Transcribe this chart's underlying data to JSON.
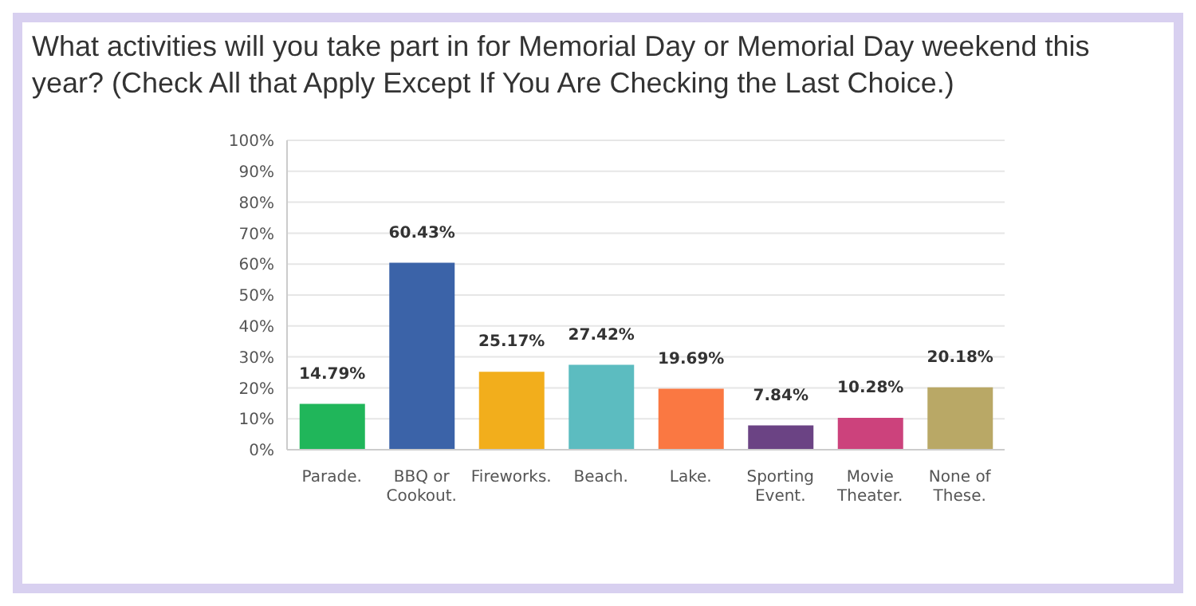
{
  "chart_data": {
    "type": "bar",
    "title": "What activities will you take part in for Memorial Day or Memorial Day weekend this year? (Check All that Apply Except If You Are Checking the Last Choice.)",
    "categories": [
      "Parade.",
      "BBQ or Cookout.",
      "Fireworks.",
      "Beach.",
      "Lake.",
      "Sporting Event.",
      "Movie Theater.",
      "None of These."
    ],
    "values": [
      14.79,
      60.43,
      25.17,
      27.42,
      19.69,
      7.84,
      10.28,
      20.18
    ],
    "colors": [
      "#20b65a",
      "#3b63a8",
      "#f2ae1c",
      "#5cbcc0",
      "#fa7842",
      "#6b4384",
      "#cc427c",
      "#b9a866"
    ],
    "value_labels": [
      "14.79%",
      "60.43%",
      "25.17%",
      "27.42%",
      "19.69%",
      "7.84%",
      "10.28%",
      "20.18%"
    ],
    "ylim": [
      0,
      100
    ],
    "yticks": [
      {
        "value": 0,
        "label": "0%"
      },
      {
        "value": 10,
        "label": "10%"
      },
      {
        "value": 20,
        "label": "20%"
      },
      {
        "value": 30,
        "label": "30%"
      },
      {
        "value": 40,
        "label": "40%"
      },
      {
        "value": 50,
        "label": "50%"
      },
      {
        "value": 60,
        "label": "60%"
      },
      {
        "value": 70,
        "label": "70%"
      },
      {
        "value": 80,
        "label": "80%"
      },
      {
        "value": 90,
        "label": "90%"
      },
      {
        "value": 100,
        "label": "100%"
      }
    ],
    "grid": "y",
    "legend": false
  }
}
